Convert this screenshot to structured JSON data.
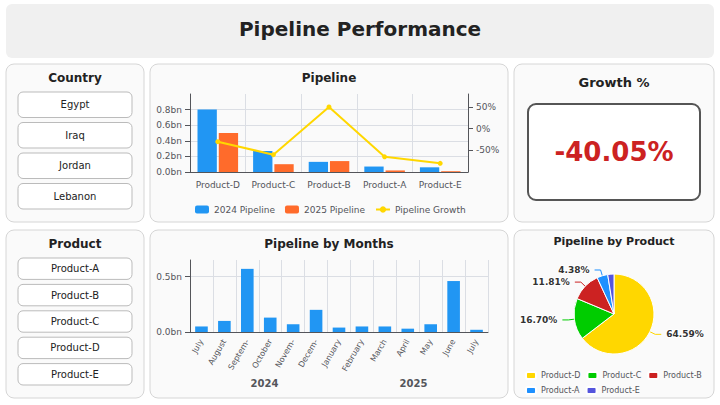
{
  "title": "Pipeline Performance",
  "chart_data": [
    {
      "type": "text",
      "title": "Country",
      "annotations": [
        "Egypt",
        "Iraq",
        "Jordan",
        "Lebanon"
      ]
    },
    {
      "type": "text",
      "title": "Product",
      "annotations": [
        "Product-A",
        "Product-B",
        "Product-C",
        "Product-D",
        "Product-E"
      ]
    },
    {
      "type": "bar",
      "title": "Pipeline",
      "categories": [
        "Product-D",
        "Product-C",
        "Product-B",
        "Product-A",
        "Product-E"
      ],
      "series": [
        {
          "name": "2024 Pipeline",
          "color": "#2196F3",
          "values": [
            0.8,
            0.27,
            0.13,
            0.07,
            0.06
          ]
        },
        {
          "name": "2025 Pipeline",
          "color": "#FF6B2B",
          "values": [
            0.5,
            0.1,
            0.14,
            0.02,
            0.01
          ]
        },
        {
          "name": "Pipeline Growth",
          "type": "line",
          "color": "#FFD700",
          "marker": "circle",
          "axis": "y2",
          "values": [
            -30,
            -60,
            50,
            -65,
            -80
          ]
        }
      ],
      "ylim": [
        0,
        1.0
      ],
      "yticks": [
        {
          "value": 0,
          "label": "0.0bn"
        },
        {
          "value": 0.2,
          "label": "0.2bn"
        },
        {
          "value": 0.4,
          "label": "0.4bn"
        },
        {
          "value": 0.6,
          "label": "0.6bn"
        },
        {
          "value": 0.8,
          "label": "0.8bn"
        }
      ],
      "y2lim": [
        -100,
        80
      ],
      "y2ticks": [
        {
          "value": -50,
          "label": "-50%"
        },
        {
          "value": 0,
          "label": "0%"
        },
        {
          "value": 50,
          "label": "50%"
        }
      ],
      "grid": true,
      "legend": "bottom"
    },
    {
      "type": "text",
      "title": "Growth %",
      "annotations": [
        "-40.05%"
      ],
      "color": "#CC2222"
    },
    {
      "type": "bar",
      "title": "Pipeline by Months",
      "categories": [
        "July",
        "August",
        "Septem-",
        "October",
        "Novem-",
        "Decem-",
        "January",
        "February",
        "March",
        "April",
        "May",
        "June",
        "July"
      ],
      "values": [
        0.05,
        0.1,
        0.57,
        0.13,
        0.07,
        0.2,
        0.04,
        0.05,
        0.05,
        0.03,
        0.07,
        0.46,
        0.02
      ],
      "color": "#2196F3",
      "ylim": [
        0,
        0.65
      ],
      "yticks": [
        {
          "value": 0,
          "label": "0.0bn"
        },
        {
          "value": 0.5,
          "label": "0.5bn"
        }
      ],
      "grid": true,
      "annotations": [
        "2024",
        "2025"
      ]
    },
    {
      "type": "pie",
      "title": "Pipeline by Product",
      "categories": [
        "Product-D",
        "Product-C",
        "Product-B",
        "Product-A",
        "Product-E"
      ],
      "values": [
        64.59,
        16.7,
        11.81,
        4.38,
        2.52
      ],
      "value_labels": [
        "64.59%",
        "16.70%",
        "11.81%",
        "4.38%",
        null
      ],
      "colors": [
        "#FFD700",
        "#00CC00",
        "#CC2222",
        "#1E90FF",
        "#5555DD"
      ],
      "data_labels": true,
      "legend": "bottom"
    }
  ]
}
